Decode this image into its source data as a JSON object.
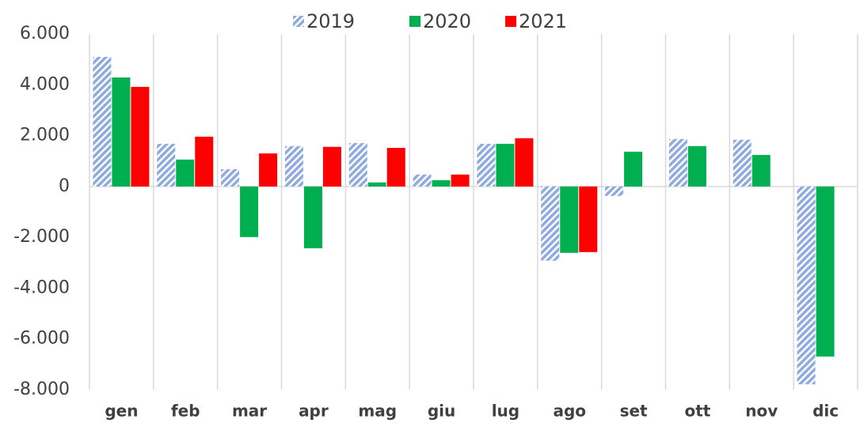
{
  "chart_data": {
    "type": "bar",
    "categories": [
      "gen",
      "feb",
      "mar",
      "apr",
      "mag",
      "giu",
      "lug",
      "ago",
      "set",
      "ott",
      "nov",
      "dic"
    ],
    "series": [
      {
        "name": "2019",
        "color": "#8faadc",
        "pattern": "diagonal",
        "values": [
          5100,
          1680,
          680,
          1590,
          1710,
          470,
          1680,
          -2920,
          -370,
          1870,
          1840,
          -7780
        ]
      },
      {
        "name": "2020",
        "color": "#00b050",
        "values": [
          4290,
          1060,
          -1990,
          -2430,
          160,
          250,
          1680,
          -2610,
          1370,
          1590,
          1240,
          -6690
        ]
      },
      {
        "name": "2021",
        "color": "#ff0000",
        "values": [
          3920,
          1960,
          1300,
          1560,
          1520,
          470,
          1900,
          -2580,
          null,
          null,
          null,
          null
        ]
      }
    ],
    "ylim": [
      -8000,
      6000
    ],
    "yticks": [
      {
        "value": -8000,
        "label": "-8.000"
      },
      {
        "value": -6000,
        "label": "-6.000"
      },
      {
        "value": -4000,
        "label": "-4.000"
      },
      {
        "value": -2000,
        "label": "-2.000"
      },
      0,
      {
        "value": 2000,
        "label": "2.000"
      },
      {
        "value": 4000,
        "label": "4.000"
      },
      {
        "value": 6000,
        "label": "6.000"
      }
    ],
    "legend": "top"
  }
}
